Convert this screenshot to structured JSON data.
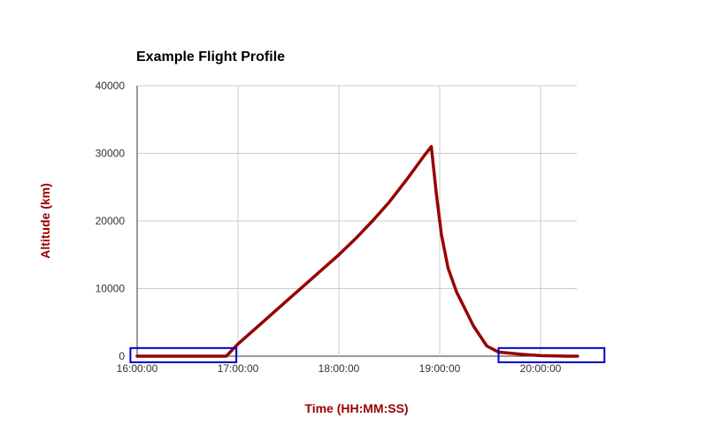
{
  "chart_data": {
    "type": "line",
    "title": "Example Flight Profile",
    "xlabel": "Time (HH:MM:SS)",
    "ylabel": "Altitude (km)",
    "x_ticks": [
      "16:00:00",
      "17:00:00",
      "18:00:00",
      "19:00:00",
      "20:00:00"
    ],
    "y_ticks": [
      "0",
      "10000",
      "20000",
      "30000",
      "40000"
    ],
    "xlim": [
      "16:00:00",
      "20:22:00"
    ],
    "ylim": [
      0,
      40000
    ],
    "grid": true,
    "legend": "none",
    "series": [
      {
        "color": "#990000",
        "points": [
          [
            "16:00:00",
            0
          ],
          [
            "16:53:00",
            0
          ],
          [
            "17:00:00",
            1800
          ],
          [
            "17:10:00",
            4000
          ],
          [
            "17:20:00",
            6200
          ],
          [
            "17:30:00",
            8400
          ],
          [
            "17:40:00",
            10600
          ],
          [
            "17:50:00",
            12800
          ],
          [
            "18:00:00",
            15000
          ],
          [
            "18:10:00",
            17400
          ],
          [
            "18:20:00",
            20000
          ],
          [
            "18:30:00",
            22800
          ],
          [
            "18:40:00",
            26000
          ],
          [
            "18:50:00",
            29400
          ],
          [
            "18:55:00",
            31000
          ],
          [
            "18:58:00",
            24000
          ],
          [
            "19:01:00",
            18000
          ],
          [
            "19:05:00",
            13000
          ],
          [
            "19:10:00",
            9500
          ],
          [
            "19:15:00",
            7000
          ],
          [
            "19:20:00",
            4500
          ],
          [
            "19:28:00",
            1500
          ],
          [
            "19:35:00",
            600
          ],
          [
            "19:50:00",
            250
          ],
          [
            "20:00:00",
            80
          ],
          [
            "20:15:00",
            0
          ],
          [
            "20:22:00",
            0
          ]
        ]
      }
    ],
    "annotations": [
      {
        "shape": "rectangle",
        "color": "#0000cc",
        "x_range": [
          "15:56:00",
          "16:59:00"
        ],
        "y_range": [
          -900,
          1200
        ]
      },
      {
        "shape": "rectangle",
        "color": "#0000cc",
        "x_range": [
          "19:35:00",
          "20:38:00"
        ],
        "y_range": [
          -900,
          1200
        ]
      }
    ]
  }
}
